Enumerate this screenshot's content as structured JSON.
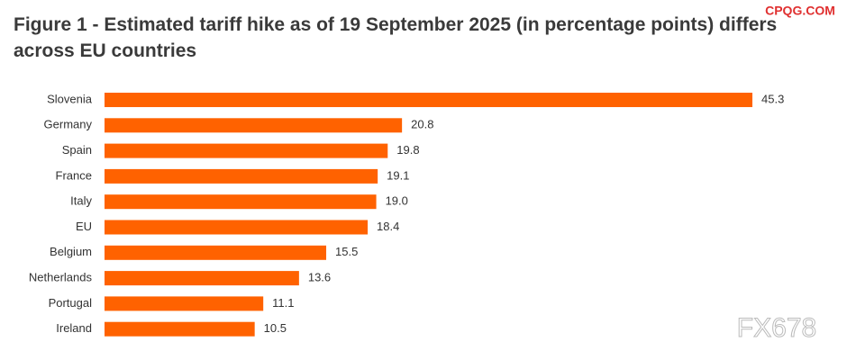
{
  "chart_data": {
    "type": "bar",
    "orientation": "horizontal",
    "title_lines": [
      "Figure 1 - Estimated tariff hike as of 19 September 2025 (in percentage points) differs",
      "across EU countries"
    ],
    "categories": [
      "Slovenia",
      "Germany",
      "Spain",
      "France",
      "Italy",
      "EU",
      "Belgium",
      "Netherlands",
      "Portugal",
      "Ireland"
    ],
    "values": [
      45.3,
      20.8,
      19.8,
      19.1,
      19.0,
      18.4,
      15.5,
      13.6,
      11.1,
      10.5
    ],
    "value_labels": [
      "45.3",
      "20.8",
      "19.8",
      "19.1",
      "19.0",
      "18.4",
      "15.5",
      "13.6",
      "11.1",
      "10.5"
    ],
    "color": "#ff6200",
    "watermarks": [
      "CPQG.COM",
      "FX678"
    ]
  }
}
